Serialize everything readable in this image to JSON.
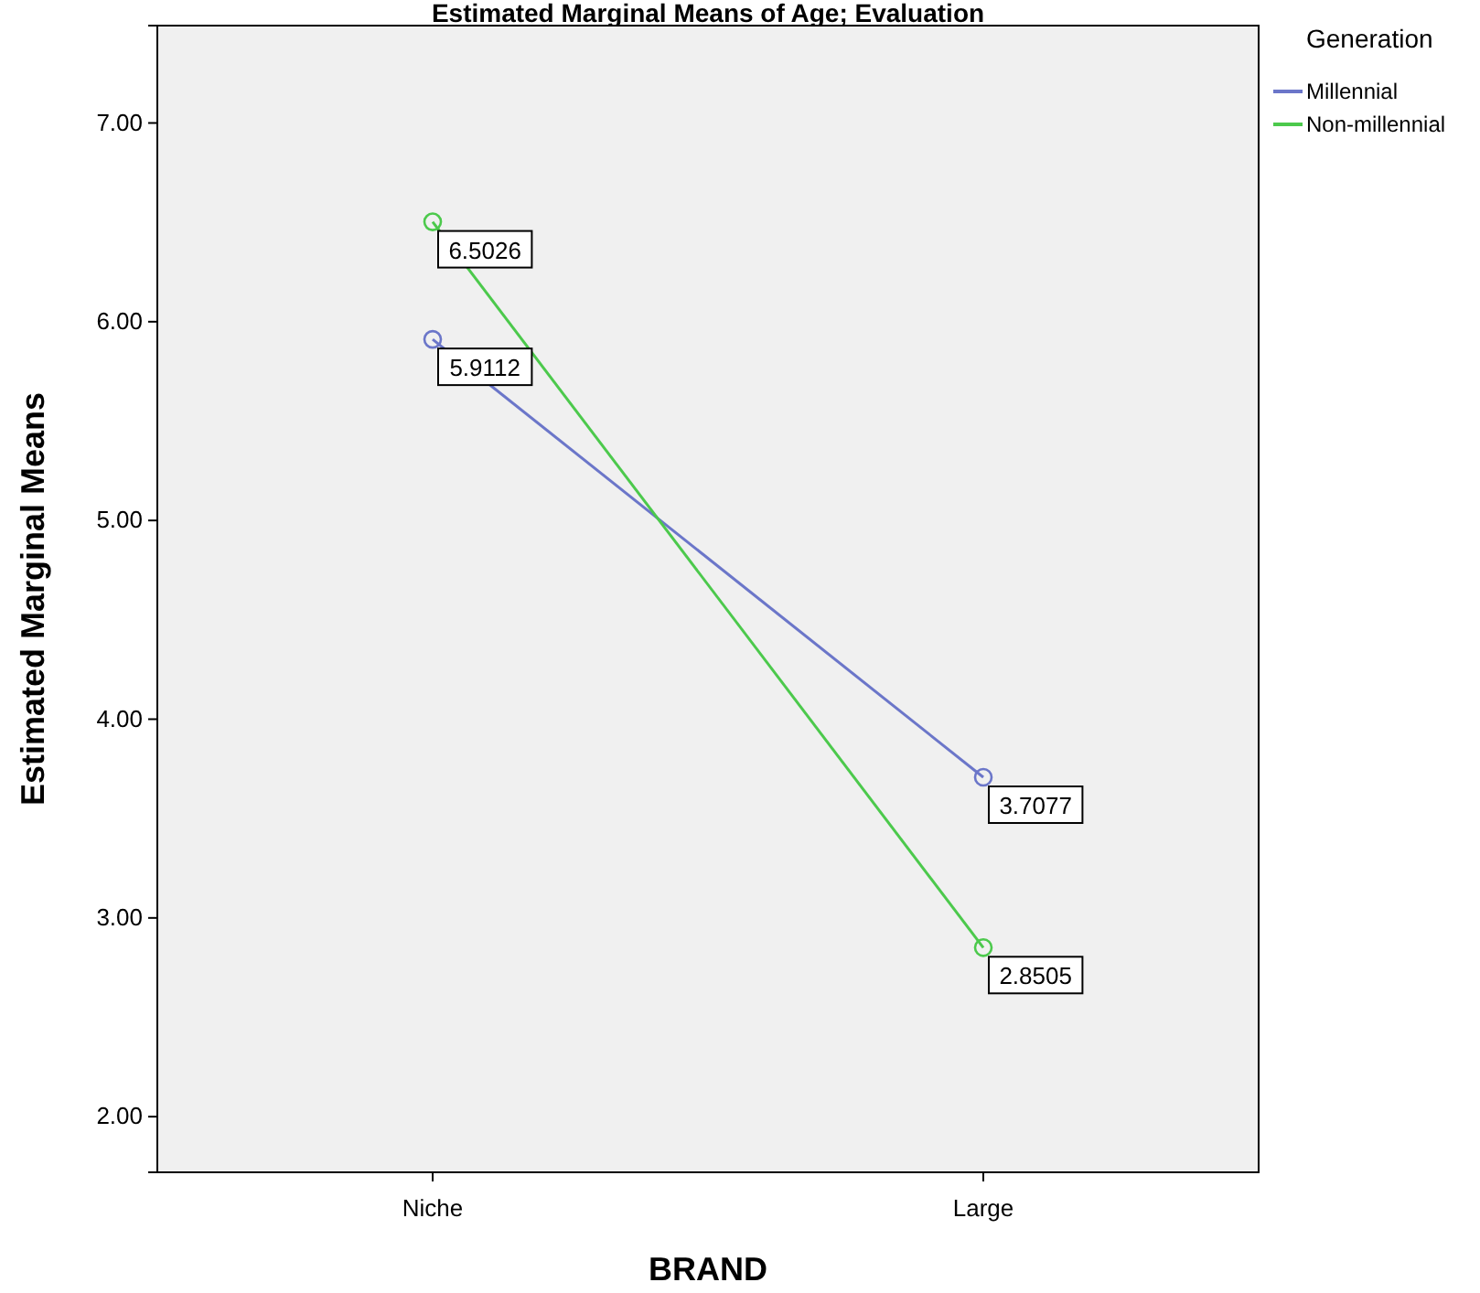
{
  "chart_data": {
    "type": "line",
    "title": "Estimated Marginal Means of Age; Evaluation",
    "xlabel": "BRAND",
    "ylabel": "Estimated Marginal Means",
    "legend_title": "Generation",
    "categories": [
      "Niche",
      "Large"
    ],
    "series": [
      {
        "name": "Millennial",
        "color": "#6b76c9",
        "values": [
          5.9112,
          3.7077
        ]
      },
      {
        "name": "Non-millennial",
        "color": "#4cc94c",
        "values": [
          6.5026,
          2.8505
        ]
      }
    ],
    "ylim": [
      1.72,
      7.49
    ],
    "yticks": [
      {
        "value": 2,
        "label": "2.00"
      },
      {
        "value": 3,
        "label": "3.00"
      },
      {
        "value": 4,
        "label": "4.00"
      },
      {
        "value": 5,
        "label": "5.00"
      },
      {
        "value": 6,
        "label": "6.00"
      },
      {
        "value": 7,
        "label": "7.00"
      }
    ],
    "data_labels": true,
    "marker": "circle",
    "legend": "right",
    "grid": false
  }
}
